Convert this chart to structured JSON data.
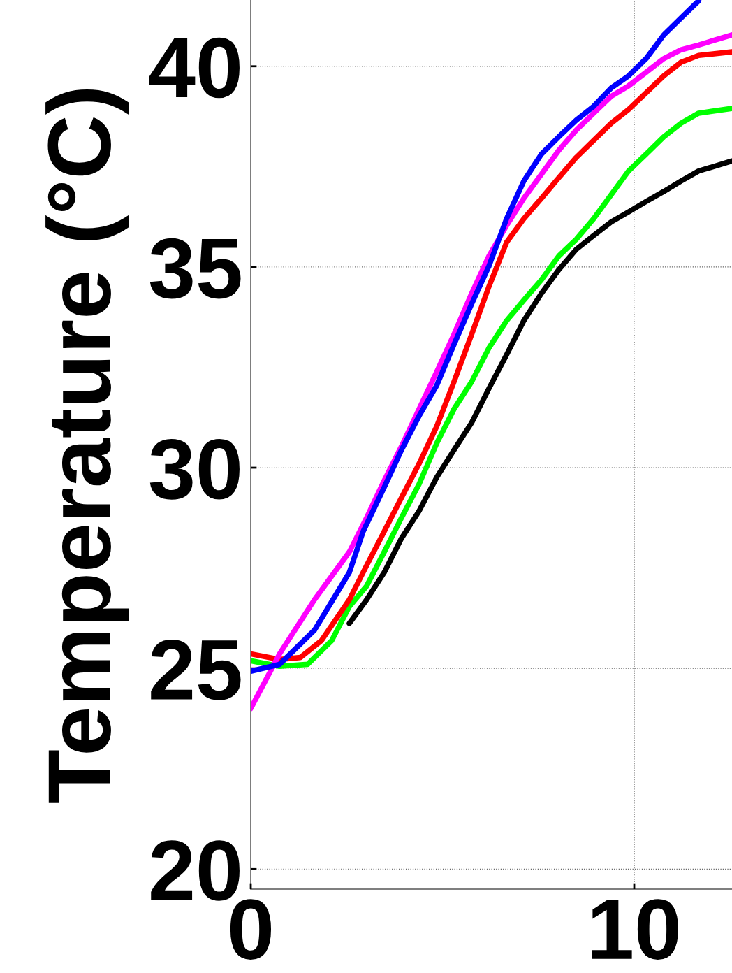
{
  "chart_data": {
    "type": "line",
    "ylabel": "Temperature (°C)",
    "xlim": [
      0,
      12.55
    ],
    "ylim": [
      19.5,
      41.65
    ],
    "xticks": [
      0,
      10
    ],
    "yticks": [
      20,
      25,
      30,
      35,
      40
    ],
    "grid": true,
    "legend": false,
    "marker": "none",
    "line_style": "solid",
    "series": [
      {
        "color": "#000000",
        "x": [
          2.57,
          3.02,
          3.48,
          3.93,
          4.39,
          4.85,
          5.3,
          5.76,
          6.21,
          6.67,
          7.12,
          7.58,
          8.03,
          8.49,
          8.94,
          9.4,
          9.85,
          10.31,
          10.77,
          11.22,
          11.68,
          12.55
        ],
        "values": [
          26.12,
          26.71,
          27.39,
          28.24,
          28.92,
          29.76,
          30.44,
          31.12,
          31.97,
          32.81,
          33.66,
          34.34,
          34.93,
          35.44,
          35.78,
          36.12,
          36.37,
          36.63,
          36.88,
          37.14,
          37.39,
          37.64
        ]
      },
      {
        "color": "#00ff00",
        "x": [
          0,
          0.75,
          1.48,
          2.11,
          2.57,
          3.02,
          3.48,
          3.93,
          4.39,
          4.85,
          5.3,
          5.76,
          6.21,
          6.67,
          7.12,
          7.58,
          8.03,
          8.49,
          8.94,
          9.4,
          9.85,
          10.31,
          10.77,
          11.22,
          11.68,
          12.55
        ],
        "values": [
          25.19,
          25.05,
          25.1,
          25.69,
          26.54,
          27.05,
          27.9,
          28.75,
          29.59,
          30.61,
          31.46,
          32.14,
          32.98,
          33.66,
          34.17,
          34.68,
          35.27,
          35.69,
          36.2,
          36.8,
          37.39,
          37.81,
          38.24,
          38.58,
          38.83,
          38.95
        ]
      },
      {
        "color": "#ff0000",
        "x": [
          0,
          0.75,
          1.29,
          1.84,
          2.57,
          3.02,
          3.48,
          3.93,
          4.39,
          4.85,
          5.3,
          5.76,
          6.21,
          6.67,
          7.12,
          7.58,
          8.03,
          8.49,
          8.94,
          9.4,
          9.85,
          10.31,
          10.77,
          11.22,
          11.68,
          12.55
        ],
        "values": [
          25.36,
          25.22,
          25.27,
          25.69,
          26.71,
          27.56,
          28.41,
          29.25,
          30.1,
          31.03,
          32.14,
          33.32,
          34.51,
          35.61,
          36.2,
          36.71,
          37.22,
          37.73,
          38.15,
          38.58,
          38.92,
          39.34,
          39.76,
          40.1,
          40.27,
          40.36
        ]
      },
      {
        "color": "#ff00ff",
        "x": [
          0,
          0.75,
          1.66,
          2.57,
          3.02,
          3.48,
          3.93,
          4.39,
          4.85,
          5.3,
          5.76,
          6.21,
          6.67,
          7.12,
          7.58,
          8.03,
          8.49,
          8.94,
          9.4,
          9.85,
          10.31,
          10.77,
          11.22,
          11.68,
          12.55
        ],
        "values": [
          24.0,
          25.36,
          26.71,
          27.9,
          28.75,
          29.68,
          30.53,
          31.46,
          32.39,
          33.32,
          34.34,
          35.27,
          36.03,
          36.71,
          37.31,
          37.9,
          38.41,
          38.83,
          39.25,
          39.51,
          39.85,
          40.19,
          40.41,
          40.53,
          40.78
        ]
      },
      {
        "color": "#0000ff",
        "x": [
          0,
          0.75,
          1.66,
          2.57,
          2.93,
          3.48,
          3.93,
          4.39,
          4.85,
          5.3,
          5.76,
          6.21,
          6.67,
          7.12,
          7.58,
          8.03,
          8.49,
          8.94,
          9.4,
          9.85,
          10.31,
          10.77,
          11.22,
          11.68
        ],
        "values": [
          24.93,
          25.1,
          25.95,
          27.39,
          28.41,
          29.51,
          30.44,
          31.29,
          32.05,
          33.07,
          34.08,
          35.02,
          36.2,
          37.14,
          37.81,
          38.24,
          38.66,
          39.0,
          39.46,
          39.76,
          40.19,
          40.78,
          41.2,
          41.63
        ]
      }
    ]
  }
}
